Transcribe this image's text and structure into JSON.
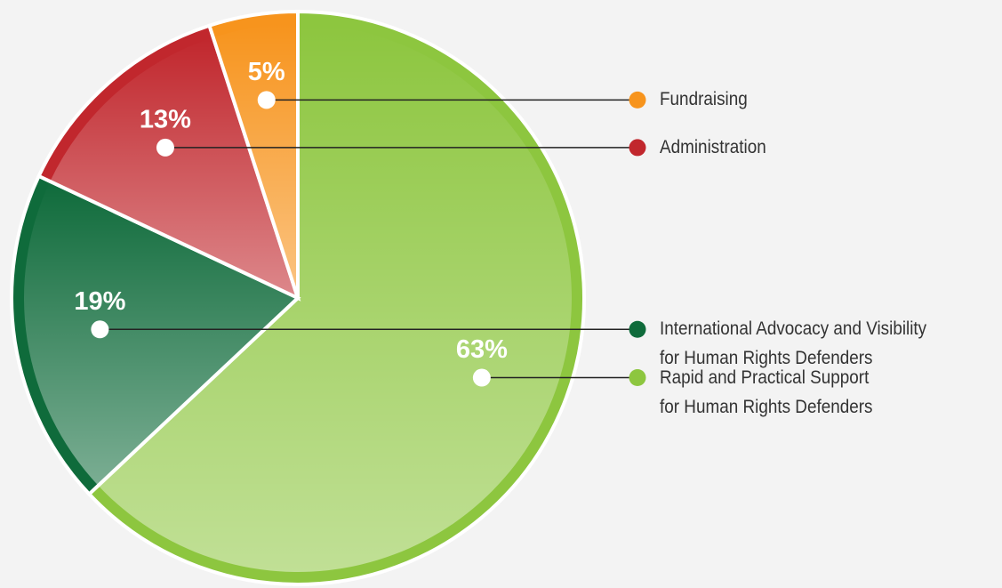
{
  "chart_data": {
    "type": "pie",
    "series": [
      {
        "name": "Rapid and Practical Support\nfor Human Rights Defenders",
        "color": "#8dc63f",
        "values": [
          63
        ],
        "value_labels": [
          "63%"
        ]
      },
      {
        "name": "International Advocacy and Visibility\nfor Human Rights Defenders",
        "color": "#0f6b3b",
        "values": [
          19
        ],
        "value_labels": [
          "19%"
        ]
      },
      {
        "name": "Administration",
        "color": "#c1272d",
        "values": [
          13
        ],
        "value_labels": [
          "13%"
        ]
      },
      {
        "name": "Fundraising",
        "color": "#f7941d",
        "values": [
          5
        ],
        "value_labels": [
          "5%"
        ]
      }
    ]
  }
}
